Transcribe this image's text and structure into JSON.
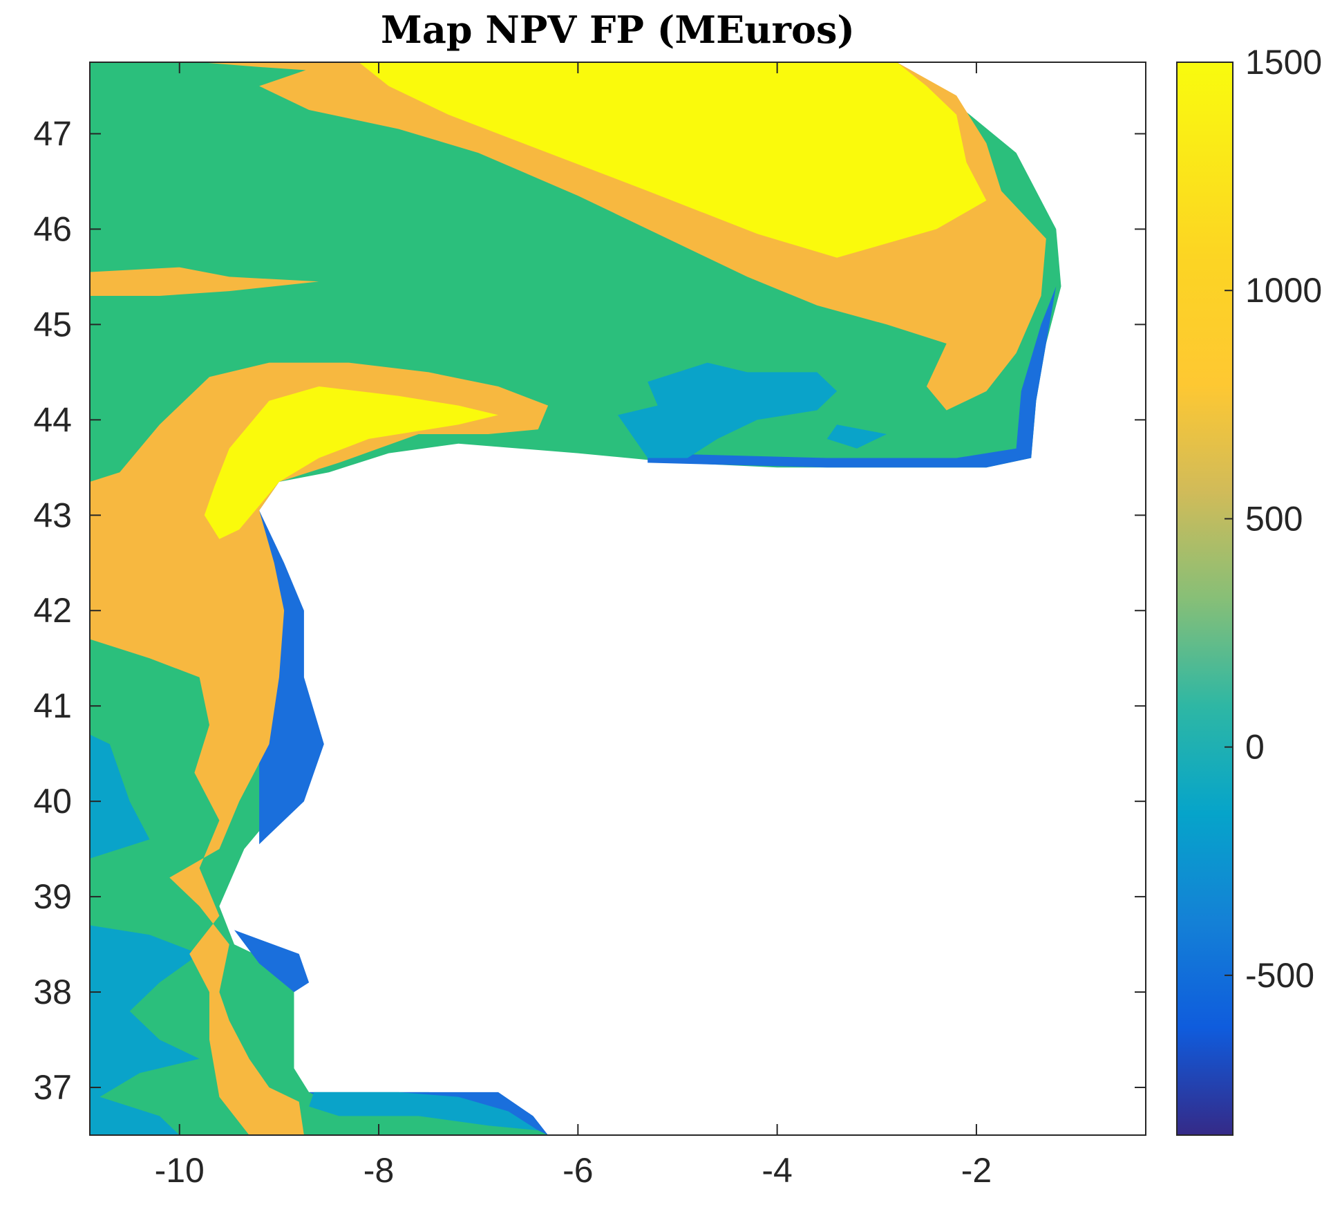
{
  "chart_data": {
    "type": "heatmap",
    "title": "Map NPV FP (MEuros)",
    "xlabel": "",
    "ylabel": "",
    "xlim": [
      -10.9,
      -0.3
    ],
    "ylim": [
      36.5,
      47.75
    ],
    "x_ticks": [
      -10,
      -8,
      -6,
      -4,
      -2
    ],
    "x_tick_labels": [
      "-10",
      "-8",
      "-6",
      "-4",
      "-2"
    ],
    "y_ticks": [
      37,
      38,
      39,
      40,
      41,
      42,
      43,
      44,
      45,
      46,
      47
    ],
    "y_tick_labels": [
      "37",
      "38",
      "39",
      "40",
      "41",
      "42",
      "43",
      "44",
      "45",
      "46",
      "47"
    ],
    "colorbar": {
      "range": [
        -850,
        1500
      ],
      "ticks": [
        -500,
        0,
        500,
        1000,
        1500
      ],
      "tick_labels": [
        "-500",
        "0",
        "500",
        "1000",
        "1500"
      ],
      "colormap": "parula"
    },
    "colors": {
      "low_dark": "#2b2f8f",
      "blue": "#1a6fdc",
      "cyan": "#0aa3c9",
      "green": "#2bbf7c",
      "orange": "#f7b840",
      "yellow": "#fafa0c"
    },
    "regions": [
      {
        "level": "green",
        "value": 500,
        "polygon": [
          [
            -10.9,
            47.75
          ],
          [
            -2.8,
            47.75
          ],
          [
            -2.3,
            47.4
          ],
          [
            -1.6,
            46.8
          ],
          [
            -1.2,
            46.0
          ],
          [
            -1.15,
            45.4
          ],
          [
            -1.3,
            44.8
          ],
          [
            -1.4,
            44.2
          ],
          [
            -1.45,
            43.6
          ],
          [
            -1.9,
            43.5
          ],
          [
            -2.7,
            43.5
          ],
          [
            -4.0,
            43.5
          ],
          [
            -5.0,
            43.55
          ],
          [
            -6.0,
            43.65
          ],
          [
            -7.2,
            43.75
          ],
          [
            -7.9,
            43.65
          ],
          [
            -8.5,
            43.45
          ],
          [
            -9.0,
            43.35
          ],
          [
            -9.2,
            43.05
          ],
          [
            -9.05,
            42.5
          ],
          [
            -8.95,
            42.0
          ],
          [
            -8.9,
            41.3
          ],
          [
            -8.75,
            40.6
          ],
          [
            -8.95,
            40.0
          ],
          [
            -9.35,
            39.5
          ],
          [
            -9.6,
            38.9
          ],
          [
            -9.45,
            38.5
          ],
          [
            -8.85,
            38.2
          ],
          [
            -8.85,
            37.2
          ],
          [
            -8.7,
            36.95
          ],
          [
            -7.5,
            36.95
          ],
          [
            -6.8,
            36.9
          ],
          [
            -6.5,
            36.7
          ],
          [
            -6.3,
            36.5
          ],
          [
            -10.9,
            36.5
          ]
        ]
      },
      {
        "level": "blue",
        "value": -400,
        "polygon": [
          [
            -9.2,
            43.05
          ],
          [
            -8.95,
            42.5
          ],
          [
            -8.75,
            42.0
          ],
          [
            -8.75,
            41.3
          ],
          [
            -8.55,
            40.6
          ],
          [
            -8.75,
            40.0
          ],
          [
            -9.2,
            39.55
          ],
          [
            -9.2,
            42.5
          ]
        ]
      },
      {
        "level": "blue",
        "value": -400,
        "polygon": [
          [
            -9.45,
            38.65
          ],
          [
            -8.8,
            38.4
          ],
          [
            -8.7,
            38.1
          ],
          [
            -8.85,
            38.0
          ],
          [
            -9.2,
            38.3
          ]
        ]
      },
      {
        "level": "blue",
        "value": -400,
        "polygon": [
          [
            -8.7,
            36.95
          ],
          [
            -7.5,
            36.95
          ],
          [
            -6.8,
            36.95
          ],
          [
            -6.45,
            36.7
          ],
          [
            -6.3,
            36.5
          ],
          [
            -6.9,
            36.8
          ],
          [
            -7.6,
            36.8
          ],
          [
            -8.5,
            36.85
          ]
        ]
      },
      {
        "level": "blue",
        "value": -400,
        "polygon": [
          [
            -5.3,
            43.55
          ],
          [
            -3.5,
            43.5
          ],
          [
            -1.9,
            43.5
          ],
          [
            -1.45,
            43.6
          ],
          [
            -1.4,
            44.2
          ],
          [
            -1.3,
            44.8
          ],
          [
            -1.2,
            45.4
          ],
          [
            -1.35,
            45.0
          ],
          [
            -1.55,
            44.3
          ],
          [
            -1.6,
            43.7
          ],
          [
            -2.2,
            43.6
          ],
          [
            -3.5,
            43.6
          ],
          [
            -5.3,
            43.65
          ]
        ]
      },
      {
        "level": "cyan",
        "value": 0,
        "polygon": [
          [
            -10.9,
            40.7
          ],
          [
            -10.7,
            40.6
          ],
          [
            -10.5,
            40.0
          ],
          [
            -10.3,
            39.6
          ],
          [
            -10.9,
            39.4
          ]
        ]
      },
      {
        "level": "cyan",
        "value": 0,
        "polygon": [
          [
            -10.9,
            38.7
          ],
          [
            -10.3,
            38.6
          ],
          [
            -9.8,
            38.4
          ],
          [
            -10.2,
            38.1
          ],
          [
            -10.5,
            37.8
          ],
          [
            -10.2,
            37.5
          ],
          [
            -9.8,
            37.3
          ],
          [
            -10.4,
            37.15
          ],
          [
            -10.8,
            36.9
          ],
          [
            -10.2,
            36.7
          ],
          [
            -10.0,
            36.5
          ],
          [
            -10.9,
            36.5
          ]
        ]
      },
      {
        "level": "cyan",
        "value": 0,
        "polygon": [
          [
            -8.65,
            36.95
          ],
          [
            -7.8,
            36.95
          ],
          [
            -7.2,
            36.9
          ],
          [
            -6.7,
            36.75
          ],
          [
            -6.4,
            36.55
          ],
          [
            -6.9,
            36.6
          ],
          [
            -7.6,
            36.7
          ],
          [
            -8.4,
            36.7
          ],
          [
            -8.7,
            36.8
          ]
        ]
      },
      {
        "level": "cyan",
        "value": 0,
        "polygon": [
          [
            -5.3,
            44.4
          ],
          [
            -4.7,
            44.6
          ],
          [
            -4.3,
            44.5
          ],
          [
            -3.6,
            44.5
          ],
          [
            -3.4,
            44.3
          ],
          [
            -3.6,
            44.1
          ],
          [
            -4.2,
            44.0
          ],
          [
            -4.6,
            43.8
          ],
          [
            -4.9,
            43.6
          ],
          [
            -5.3,
            43.6
          ],
          [
            -5.6,
            44.05
          ],
          [
            -5.2,
            44.15
          ]
        ]
      },
      {
        "level": "cyan",
        "value": 0,
        "polygon": [
          [
            -3.4,
            43.95
          ],
          [
            -2.9,
            43.85
          ],
          [
            -3.2,
            43.7
          ],
          [
            -3.5,
            43.8
          ]
        ]
      },
      {
        "level": "orange",
        "value": 1000,
        "polygon": [
          [
            -10.9,
            45.55
          ],
          [
            -10.0,
            45.6
          ],
          [
            -9.5,
            45.5
          ],
          [
            -8.6,
            45.45
          ],
          [
            -9.5,
            45.35
          ],
          [
            -10.2,
            45.3
          ],
          [
            -10.9,
            45.3
          ]
        ]
      },
      {
        "level": "orange",
        "value": 1000,
        "polygon": [
          [
            -9.8,
            47.75
          ],
          [
            -8.3,
            47.75
          ],
          [
            -8.5,
            47.65
          ],
          [
            -9.2,
            47.7
          ]
        ]
      },
      {
        "level": "orange",
        "value": 1000,
        "polygon": [
          [
            -8.5,
            47.75
          ],
          [
            -2.8,
            47.75
          ],
          [
            -2.2,
            47.4
          ],
          [
            -1.9,
            46.9
          ],
          [
            -1.75,
            46.4
          ],
          [
            -1.3,
            45.9
          ],
          [
            -1.35,
            45.3
          ],
          [
            -1.6,
            44.7
          ],
          [
            -1.9,
            44.3
          ],
          [
            -2.3,
            44.1
          ],
          [
            -2.5,
            44.35
          ],
          [
            -2.3,
            44.8
          ],
          [
            -2.9,
            45.0
          ],
          [
            -3.6,
            45.2
          ],
          [
            -4.3,
            45.5
          ],
          [
            -5.0,
            45.85
          ],
          [
            -6.0,
            46.35
          ],
          [
            -7.0,
            46.8
          ],
          [
            -7.8,
            47.05
          ],
          [
            -8.7,
            47.25
          ],
          [
            -9.2,
            47.5
          ]
        ]
      },
      {
        "level": "orange",
        "value": 1000,
        "polygon": [
          [
            -10.9,
            43.35
          ],
          [
            -10.6,
            43.45
          ],
          [
            -10.2,
            43.95
          ],
          [
            -9.7,
            44.45
          ],
          [
            -9.1,
            44.6
          ],
          [
            -8.3,
            44.6
          ],
          [
            -7.5,
            44.5
          ],
          [
            -6.8,
            44.35
          ],
          [
            -6.3,
            44.15
          ],
          [
            -6.4,
            43.9
          ],
          [
            -6.9,
            43.85
          ],
          [
            -7.6,
            43.85
          ],
          [
            -8.4,
            43.55
          ],
          [
            -9.0,
            43.35
          ],
          [
            -9.2,
            43.05
          ],
          [
            -9.05,
            42.5
          ],
          [
            -8.95,
            42.0
          ],
          [
            -9.0,
            41.3
          ],
          [
            -9.1,
            40.6
          ],
          [
            -9.4,
            40.0
          ],
          [
            -9.6,
            39.5
          ],
          [
            -10.1,
            39.2
          ],
          [
            -9.8,
            38.9
          ],
          [
            -9.5,
            38.5
          ],
          [
            -9.6,
            38.0
          ],
          [
            -9.5,
            37.7
          ],
          [
            -9.3,
            37.3
          ],
          [
            -9.1,
            37.0
          ],
          [
            -8.8,
            36.85
          ],
          [
            -8.75,
            36.5
          ],
          [
            -9.3,
            36.5
          ],
          [
            -9.6,
            36.9
          ],
          [
            -9.7,
            37.5
          ],
          [
            -9.7,
            38.0
          ],
          [
            -9.9,
            38.4
          ],
          [
            -9.6,
            38.8
          ],
          [
            -9.8,
            39.3
          ],
          [
            -9.6,
            39.8
          ],
          [
            -9.85,
            40.3
          ],
          [
            -9.7,
            40.8
          ],
          [
            -9.8,
            41.3
          ],
          [
            -10.3,
            41.5
          ],
          [
            -10.9,
            41.7
          ]
        ]
      },
      {
        "level": "yellow",
        "value": 1500,
        "polygon": [
          [
            -8.2,
            47.75
          ],
          [
            -2.8,
            47.75
          ],
          [
            -2.5,
            47.5
          ],
          [
            -2.2,
            47.2
          ],
          [
            -2.1,
            46.7
          ],
          [
            -1.9,
            46.3
          ],
          [
            -2.4,
            46.0
          ],
          [
            -3.4,
            45.7
          ],
          [
            -4.2,
            45.95
          ],
          [
            -5.3,
            46.4
          ],
          [
            -6.3,
            46.8
          ],
          [
            -7.3,
            47.2
          ],
          [
            -7.9,
            47.5
          ]
        ]
      },
      {
        "level": "yellow",
        "value": 1500,
        "polygon": [
          [
            -9.65,
            43.3
          ],
          [
            -9.5,
            43.7
          ],
          [
            -9.1,
            44.2
          ],
          [
            -8.6,
            44.35
          ],
          [
            -7.8,
            44.25
          ],
          [
            -7.2,
            44.15
          ],
          [
            -6.8,
            44.05
          ],
          [
            -7.2,
            43.95
          ],
          [
            -8.1,
            43.8
          ],
          [
            -8.6,
            43.6
          ],
          [
            -9.0,
            43.35
          ],
          [
            -9.2,
            43.1
          ],
          [
            -9.4,
            42.85
          ],
          [
            -9.6,
            42.75
          ],
          [
            -9.75,
            43.0
          ]
        ]
      }
    ]
  }
}
